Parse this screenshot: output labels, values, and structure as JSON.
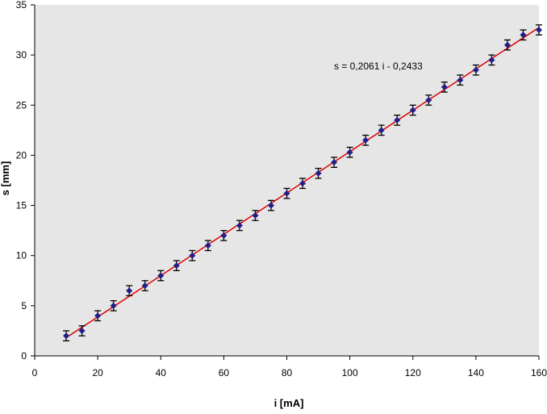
{
  "chart_data": {
    "type": "scatter",
    "xlabel": "i [mA]",
    "ylabel": "s [mm]",
    "xlim": [
      0,
      160
    ],
    "ylim": [
      0,
      35
    ],
    "x_ticks": [
      0,
      20,
      40,
      60,
      80,
      100,
      120,
      140,
      160
    ],
    "y_ticks": [
      0,
      5,
      10,
      15,
      20,
      25,
      30,
      35
    ],
    "x_tick_labels": [
      "0",
      "20",
      "40",
      "60",
      "80",
      "100",
      "120",
      "140",
      "160"
    ],
    "y_tick_labels": [
      "0",
      "5",
      "10",
      "15",
      "20",
      "25",
      "30",
      "35"
    ],
    "grid": false,
    "series": [
      {
        "x": [
          10,
          15,
          20,
          25,
          30,
          35,
          40,
          45,
          50,
          55,
          60,
          65,
          70,
          75,
          80,
          85,
          90,
          95,
          100,
          105,
          110,
          115,
          120,
          125,
          130,
          135,
          140,
          145,
          150,
          155,
          160
        ],
        "y": [
          2.0,
          2.5,
          4.0,
          5.0,
          6.5,
          7.0,
          8.0,
          9.0,
          10.0,
          11.0,
          12.0,
          13.0,
          14.0,
          15.0,
          16.2,
          17.2,
          18.2,
          19.3,
          20.3,
          21.5,
          22.5,
          23.5,
          24.5,
          25.5,
          26.8,
          27.5,
          28.5,
          29.5,
          31.0,
          32.0,
          32.5
        ],
        "error": 0.5,
        "marker_color": "#1f1f8a"
      }
    ],
    "fit": {
      "slope": 0.2061,
      "intercept": -0.2433,
      "label": "s = 0,2061 i - 0,2433",
      "color": "#e00000"
    },
    "plot_background": "#e6e6e6"
  }
}
